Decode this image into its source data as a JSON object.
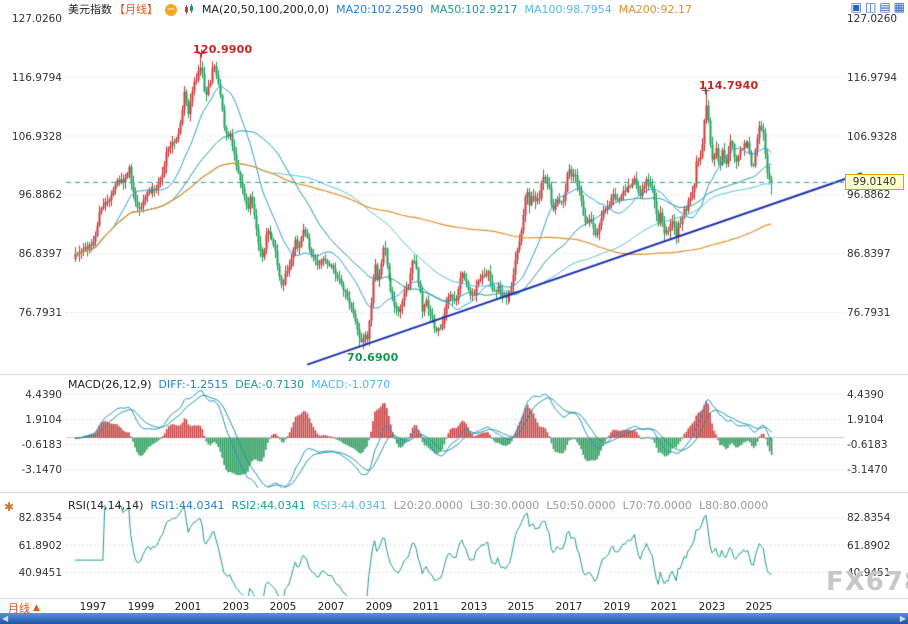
{
  "header": {
    "symbol": "美元指数",
    "period_tag": "【月线】",
    "collapse_glyph": "−",
    "ma_settings": "MA(20,50,100,200,0,0)",
    "ma20": "MA20:102.2590",
    "ma50": "MA50:102.9217",
    "ma100": "MA100:98.7954",
    "ma200": "MA200:92.17"
  },
  "toolbar": {
    "icons": [
      {
        "name": "layout-single-icon",
        "glyph": "▣"
      },
      {
        "name": "layout-dual-icon",
        "glyph": "◫"
      },
      {
        "name": "layout-triple-icon",
        "glyph": "▤"
      },
      {
        "name": "layout-quad-icon",
        "glyph": "▦"
      }
    ]
  },
  "left_toolbar": {
    "settings_glyph": "✱"
  },
  "main_chart": {
    "y_labels": [
      "127.0260",
      "116.9794",
      "106.9328",
      "96.8862",
      "86.8397",
      "76.7931"
    ],
    "annotations": {
      "high1": "120.9900",
      "high2": "114.7940",
      "low": "70.6900"
    },
    "last_price": "99.0140"
  },
  "macd_panel": {
    "title": "MACD(26,12,9)",
    "diff": "DIFF:-1.2515",
    "dea": "DEA:-0.7130",
    "macd": "MACD:-1.0770",
    "y_labels": [
      "4.4390",
      "1.9104",
      "-0.6183",
      "-3.1470"
    ]
  },
  "rsi_panel": {
    "title": "RSI(14,14,14)",
    "rsi1": "RSI1:44.0341",
    "rsi2": "RSI2:44.0341",
    "rsi3": "RSI3:44.0341",
    "levels": [
      "L20:20.0000",
      "L30:30.0000",
      "L50:50.0000",
      "L70:70.0000",
      "L80:80.0000"
    ],
    "y_labels": [
      "82.8354",
      "61.8902",
      "40.9451"
    ]
  },
  "x_axis": {
    "period_label": "月线",
    "period_arrow": "▲",
    "years": [
      "1997",
      "1999",
      "2001",
      "2003",
      "2005",
      "2007",
      "2009",
      "2011",
      "2013",
      "2015",
      "2017",
      "2019",
      "2021",
      "2023",
      "2025"
    ]
  },
  "scrollbar": {
    "left_glyph": "◀",
    "right_glyph": "▶"
  },
  "watermark": "FX678",
  "colors": {
    "up_candle": "#c93a3a",
    "down_candle": "#1fa05a",
    "ma20": "#2f9ad6",
    "ma50": "#1d9a8f",
    "ma100": "#55bfd4",
    "ma200": "#e0912e",
    "trendline": "#1b2fb0",
    "current_price_line": "#1fa89e",
    "badge_bg": "#ffffcc",
    "badge_border": "#e0a000",
    "annotation_high": "#cc2222",
    "annotation_low": "#0a9a50",
    "macd_up": "#c94545",
    "macd_down": "#2f9e5f",
    "diff_line": "#2a8fd0",
    "dea_line": "#1d9a8f",
    "rsi_line": "#1d9a8f",
    "grid": "#dcdcdc",
    "panel_border": "#d0d0d0",
    "scrollbar_blue": "#2a62c0",
    "watermark_gray": "#c8c8c8"
  },
  "chart_data": {
    "type": "candlestick",
    "title": "美元指数 月线 (US Dollar Index, monthly)",
    "x_range": [
      1996.25,
      2025.55
    ],
    "y_ticks": [
      127.026,
      116.9794,
      106.9328,
      96.8862,
      86.8397,
      76.7931
    ],
    "x_tick_years": [
      1997,
      1999,
      2001,
      2003,
      2005,
      2007,
      2009,
      2011,
      2013,
      2015,
      2017,
      2019,
      2021,
      2023,
      2025
    ],
    "current_price": 99.014,
    "ma_periods": [
      20,
      50,
      100,
      200
    ],
    "ma_values": {
      "ma20": 102.259,
      "ma50": 102.9217,
      "ma100": 98.7954,
      "ma200": 92.17
    },
    "macd_params": [
      26,
      12,
      9
    ],
    "macd_values": {
      "diff": -1.2515,
      "dea": -0.713,
      "macd": -1.077
    },
    "macd_ticks": [
      4.439,
      1.9104,
      -0.6183,
      -3.147
    ],
    "rsi_period": 14,
    "rsi_values": {
      "rsi1": 44.0341,
      "rsi2": 44.0341,
      "rsi3": 44.0341
    },
    "rsi_ticks": [
      82.8354,
      61.8902,
      40.9451
    ],
    "extremes": [
      {
        "t": 2001.54,
        "kind": "high",
        "value": 120.99
      },
      {
        "t": 2008.2,
        "kind": "low",
        "value": 70.69
      },
      {
        "t": 2022.73,
        "kind": "high",
        "value": 114.794
      }
    ],
    "trendline": [
      [
        2006.0,
        67.8
      ],
      [
        2029.3,
        100.5
      ]
    ],
    "anchors": [
      [
        1996.25,
        86.3
      ],
      [
        1996.5,
        87.3
      ],
      [
        1996.75,
        87.6
      ],
      [
        1997.0,
        88.6
      ],
      [
        1997.25,
        93.5
      ],
      [
        1997.5,
        95.3
      ],
      [
        1997.75,
        96.8
      ],
      [
        1998.0,
        99.4
      ],
      [
        1998.25,
        99.0
      ],
      [
        1998.5,
        101.3
      ],
      [
        1998.7,
        96.0
      ],
      [
        1998.85,
        94.2
      ],
      [
        1999.0,
        94.8
      ],
      [
        1999.25,
        97.0
      ],
      [
        1999.5,
        97.8
      ],
      [
        1999.7,
        98.5
      ],
      [
        1999.95,
        101.0
      ],
      [
        2000.1,
        104.5
      ],
      [
        2000.3,
        105.5
      ],
      [
        2000.5,
        106.2
      ],
      [
        2000.7,
        109.5
      ],
      [
        2000.85,
        115.0
      ],
      [
        2001.0,
        110.5
      ],
      [
        2001.2,
        115.3
      ],
      [
        2001.4,
        117.5
      ],
      [
        2001.54,
        119.2
      ],
      [
        2001.7,
        112.8
      ],
      [
        2001.9,
        116.0
      ],
      [
        2002.05,
        119.3
      ],
      [
        2002.2,
        117.0
      ],
      [
        2002.4,
        112.0
      ],
      [
        2002.55,
        106.8
      ],
      [
        2002.75,
        107.5
      ],
      [
        2002.95,
        102.5
      ],
      [
        2003.1,
        100.5
      ],
      [
        2003.3,
        97.0
      ],
      [
        2003.45,
        94.0
      ],
      [
        2003.6,
        96.5
      ],
      [
        2003.75,
        93.5
      ],
      [
        2003.95,
        87.5
      ],
      [
        2004.1,
        86.0
      ],
      [
        2004.3,
        90.8
      ],
      [
        2004.45,
        89.5
      ],
      [
        2004.6,
        88.5
      ],
      [
        2004.75,
        85.0
      ],
      [
        2004.95,
        80.9
      ],
      [
        2005.1,
        83.5
      ],
      [
        2005.3,
        85.0
      ],
      [
        2005.5,
        89.0
      ],
      [
        2005.65,
        87.5
      ],
      [
        2005.85,
        91.5
      ],
      [
        2006.0,
        89.0
      ],
      [
        2006.2,
        86.5
      ],
      [
        2006.4,
        84.8
      ],
      [
        2006.6,
        85.8
      ],
      [
        2006.8,
        85.5
      ],
      [
        2007.0,
        84.8
      ],
      [
        2007.2,
        83.2
      ],
      [
        2007.4,
        82.0
      ],
      [
        2007.55,
        80.5
      ],
      [
        2007.75,
        78.2
      ],
      [
        2007.95,
        76.5
      ],
      [
        2008.1,
        73.5
      ],
      [
        2008.2,
        71.6
      ],
      [
        2008.35,
        72.6
      ],
      [
        2008.5,
        72.3
      ],
      [
        2008.65,
        77.0
      ],
      [
        2008.8,
        85.5
      ],
      [
        2008.95,
        81.5
      ],
      [
        2009.1,
        86.0
      ],
      [
        2009.2,
        88.5
      ],
      [
        2009.35,
        84.5
      ],
      [
        2009.5,
        80.0
      ],
      [
        2009.65,
        78.3
      ],
      [
        2009.8,
        76.5
      ],
      [
        2009.95,
        77.8
      ],
      [
        2010.1,
        80.0
      ],
      [
        2010.25,
        81.5
      ],
      [
        2010.45,
        86.5
      ],
      [
        2010.55,
        84.5
      ],
      [
        2010.7,
        81.5
      ],
      [
        2010.85,
        76.5
      ],
      [
        2010.95,
        79.0
      ],
      [
        2011.1,
        77.5
      ],
      [
        2011.25,
        75.5
      ],
      [
        2011.4,
        73.5
      ],
      [
        2011.5,
        74.3
      ],
      [
        2011.65,
        74.0
      ],
      [
        2011.8,
        77.2
      ],
      [
        2011.95,
        80.2
      ],
      [
        2012.1,
        79.0
      ],
      [
        2012.25,
        78.8
      ],
      [
        2012.4,
        82.5
      ],
      [
        2012.55,
        83.3
      ],
      [
        2012.7,
        81.2
      ],
      [
        2012.85,
        79.9
      ],
      [
        2013.0,
        79.8
      ],
      [
        2013.15,
        81.9
      ],
      [
        2013.3,
        83.0
      ],
      [
        2013.45,
        83.1
      ],
      [
        2013.55,
        84.5
      ],
      [
        2013.7,
        81.3
      ],
      [
        2013.85,
        80.2
      ],
      [
        2014.0,
        81.2
      ],
      [
        2014.15,
        80.0
      ],
      [
        2014.3,
        79.5
      ],
      [
        2014.45,
        79.8
      ],
      [
        2014.6,
        81.5
      ],
      [
        2014.75,
        85.9
      ],
      [
        2014.9,
        88.3
      ],
      [
        2015.05,
        92.1
      ],
      [
        2015.2,
        98.3
      ],
      [
        2015.35,
        95.0
      ],
      [
        2015.45,
        96.9
      ],
      [
        2015.6,
        96.0
      ],
      [
        2015.75,
        96.3
      ],
      [
        2015.9,
        100.2
      ],
      [
        2016.0,
        99.6
      ],
      [
        2016.15,
        98.2
      ],
      [
        2016.3,
        93.6
      ],
      [
        2016.45,
        95.8
      ],
      [
        2016.6,
        95.5
      ],
      [
        2016.75,
        95.4
      ],
      [
        2016.85,
        98.3
      ],
      [
        2016.95,
        102.2
      ],
      [
        2017.05,
        99.5
      ],
      [
        2017.2,
        101.1
      ],
      [
        2017.3,
        99.0
      ],
      [
        2017.45,
        97.3
      ],
      [
        2017.6,
        93.0
      ],
      [
        2017.7,
        91.3
      ],
      [
        2017.8,
        93.1
      ],
      [
        2017.95,
        92.3
      ],
      [
        2018.05,
        89.1
      ],
      [
        2018.15,
        90.6
      ],
      [
        2018.3,
        91.8
      ],
      [
        2018.4,
        94.0
      ],
      [
        2018.55,
        94.5
      ],
      [
        2018.65,
        95.1
      ],
      [
        2018.8,
        97.0
      ],
      [
        2018.95,
        96.2
      ],
      [
        2019.1,
        96.2
      ],
      [
        2019.2,
        97.2
      ],
      [
        2019.35,
        97.5
      ],
      [
        2019.5,
        98.4
      ],
      [
        2019.6,
        98.5
      ],
      [
        2019.75,
        99.4
      ],
      [
        2019.9,
        97.3
      ],
      [
        2019.97,
        96.4
      ],
      [
        2020.1,
        98.1
      ],
      [
        2020.2,
        99.0
      ],
      [
        2020.3,
        99.5
      ],
      [
        2020.45,
        98.3
      ],
      [
        2020.55,
        97.4
      ],
      [
        2020.65,
        93.3
      ],
      [
        2020.75,
        92.1
      ],
      [
        2020.85,
        94.0
      ],
      [
        2020.97,
        89.9
      ],
      [
        2021.1,
        90.6
      ],
      [
        2021.2,
        91.0
      ],
      [
        2021.3,
        93.2
      ],
      [
        2021.4,
        91.3
      ],
      [
        2021.5,
        89.8
      ],
      [
        2021.6,
        92.4
      ],
      [
        2021.7,
        92.2
      ],
      [
        2021.8,
        94.2
      ],
      [
        2021.9,
        94.1
      ],
      [
        2021.97,
        95.7
      ],
      [
        2022.05,
        96.5
      ],
      [
        2022.15,
        96.7
      ],
      [
        2022.25,
        98.3
      ],
      [
        2022.35,
        103.0
      ],
      [
        2022.45,
        101.8
      ],
      [
        2022.55,
        104.7
      ],
      [
        2022.6,
        105.9
      ],
      [
        2022.65,
        108.7
      ],
      [
        2022.73,
        112.2
      ],
      [
        2022.8,
        111.5
      ],
      [
        2022.9,
        105.9
      ],
      [
        2022.97,
        103.5
      ],
      [
        2023.05,
        102.1
      ],
      [
        2023.15,
        104.9
      ],
      [
        2023.25,
        102.5
      ],
      [
        2023.35,
        101.7
      ],
      [
        2023.4,
        104.3
      ],
      [
        2023.5,
        102.9
      ],
      [
        2023.58,
        101.9
      ],
      [
        2023.65,
        103.6
      ],
      [
        2023.73,
        106.2
      ],
      [
        2023.8,
        106.7
      ],
      [
        2023.9,
        103.5
      ],
      [
        2023.97,
        101.3
      ],
      [
        2024.05,
        103.3
      ],
      [
        2024.15,
        104.2
      ],
      [
        2024.25,
        104.5
      ],
      [
        2024.3,
        106.2
      ],
      [
        2024.4,
        104.7
      ],
      [
        2024.5,
        105.9
      ],
      [
        2024.58,
        104.1
      ],
      [
        2024.65,
        101.7
      ],
      [
        2024.73,
        100.8
      ],
      [
        2024.8,
        104.0
      ],
      [
        2024.9,
        105.7
      ],
      [
        2024.97,
        108.5
      ],
      [
        2025.05,
        108.4
      ],
      [
        2025.15,
        107.6
      ],
      [
        2025.25,
        104.2
      ],
      [
        2025.35,
        99.5
      ],
      [
        2025.42,
        99.3
      ],
      [
        2025.5,
        97.2
      ],
      [
        2025.55,
        99.014
      ]
    ]
  }
}
